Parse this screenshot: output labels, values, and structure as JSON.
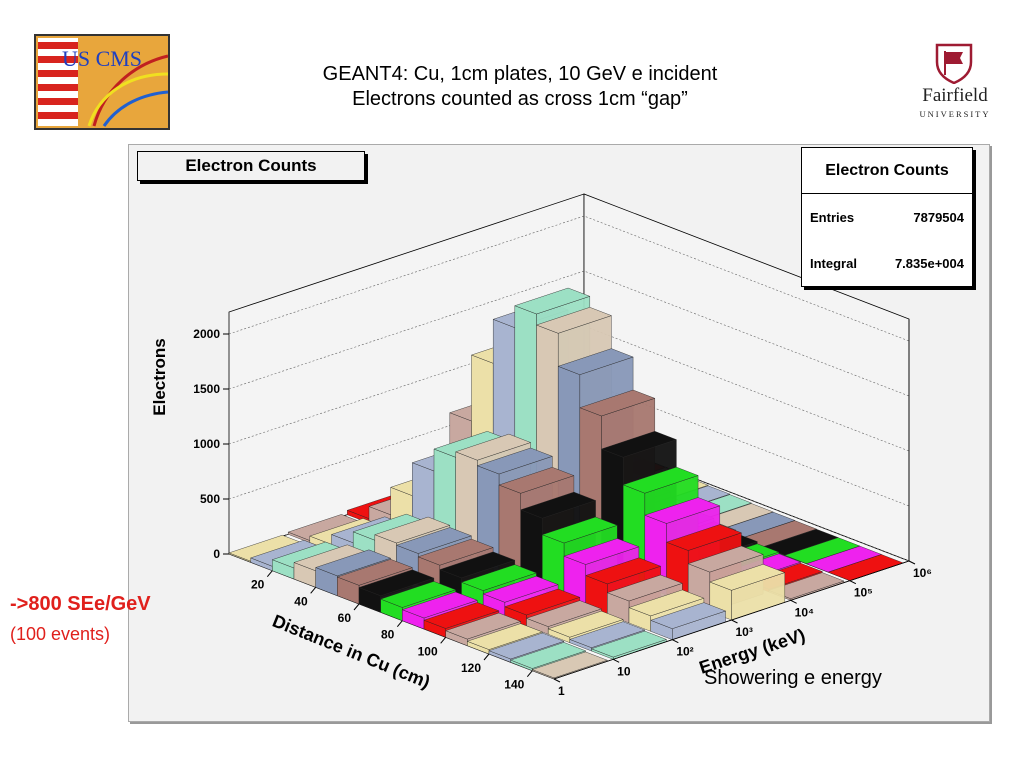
{
  "slide": {
    "title_line1": "GEANT4: Cu, 1cm plates, 10 GeV e incident",
    "title_line2": "Electrons counted as cross 1cm “gap”",
    "left_logo_text": "US CMS",
    "right_logo_name": "Fairfield",
    "right_logo_sub": "UNIVERSITY",
    "note_result": "->800 SEe/GeV",
    "note_events": "(100 events)",
    "note_showering": "Showering  e energy"
  },
  "stats": {
    "name": "Electron Counts",
    "entries_label": "Entries",
    "entries_value": "7879504",
    "integral_label": "Integral",
    "integral_value": "7.835e+004"
  },
  "colors": {
    "canvas_bg": "#f2f2f2",
    "highlight_red": "#e0201c",
    "lego_palette": [
      "#111111",
      "#22dd22",
      "#ee22ee",
      "#ee1111",
      "#c8a8a0",
      "#ece0a8",
      "#a8b4d0",
      "#9ce0c4",
      "#d8c8b4",
      "#8898b8",
      "#a87870"
    ]
  },
  "chart_data": {
    "type": "lego3d",
    "title": "Electron Counts",
    "xlabel": "Distance in Cu (cm)",
    "ylabel": "Energy (keV)",
    "zlabel": "Electrons",
    "x_ticks": [
      "20",
      "40",
      "60",
      "80",
      "100",
      "120",
      "140"
    ],
    "y_ticks": [
      "1",
      "10",
      "10²",
      "10³",
      "10⁴",
      "10⁵",
      "10⁶"
    ],
    "z_ticks": [
      "0",
      "500",
      "1000",
      "1500",
      "2000"
    ],
    "xlim": [
      0,
      150
    ],
    "ylim_log10": [
      0,
      6
    ],
    "zlim": [
      0,
      2200
    ],
    "series": [
      {
        "energy_log10": 0.0,
        "distance": [
          0,
          10,
          20,
          30,
          40,
          50,
          60,
          70,
          80,
          90,
          100,
          110,
          120,
          130,
          140,
          150
        ],
        "counts": [
          10,
          40,
          100,
          150,
          180,
          170,
          150,
          120,
          100,
          80,
          60,
          40,
          30,
          20,
          10,
          5
        ]
      },
      {
        "energy_log10": 1.0,
        "distance": [
          0,
          10,
          20,
          30,
          40,
          50,
          60,
          70,
          80,
          90,
          100,
          110,
          120,
          130,
          140,
          150
        ],
        "counts": [
          20,
          60,
          150,
          250,
          300,
          280,
          250,
          210,
          170,
          140,
          100,
          70,
          50,
          30,
          20,
          10
        ]
      },
      {
        "energy_log10": 2.0,
        "distance": [
          0,
          10,
          20,
          30,
          40,
          50,
          60,
          70,
          80,
          90,
          100,
          110,
          120,
          130,
          140,
          150
        ],
        "counts": [
          40,
          150,
          400,
          700,
          900,
          950,
          900,
          800,
          650,
          500,
          380,
          280,
          200,
          140,
          100,
          70
        ]
      },
      {
        "energy_log10": 3.0,
        "distance": [
          0,
          10,
          20,
          30,
          40,
          50,
          60,
          70,
          80,
          90,
          100,
          110,
          120,
          130,
          140,
          150
        ],
        "counts": [
          60,
          300,
          900,
          1500,
          1900,
          2100,
          2000,
          1700,
          1400,
          1100,
          850,
          650,
          480,
          360,
          270,
          200
        ]
      },
      {
        "energy_log10": 4.0,
        "distance": [
          0,
          10,
          20,
          30,
          40,
          50,
          60,
          70,
          80,
          90,
          100,
          110,
          120,
          130,
          140,
          150
        ],
        "counts": [
          30,
          100,
          200,
          280,
          300,
          260,
          220,
          170,
          130,
          100,
          70,
          50,
          35,
          25,
          15,
          10
        ]
      },
      {
        "energy_log10": 5.0,
        "distance": [
          0,
          10,
          20,
          30,
          40,
          50,
          60,
          70,
          80,
          90,
          100,
          110,
          120,
          130,
          140,
          150
        ],
        "counts": [
          10,
          20,
          30,
          35,
          30,
          25,
          20,
          15,
          10,
          8,
          6,
          4,
          3,
          2,
          1,
          1
        ]
      }
    ],
    "grid": true
  }
}
